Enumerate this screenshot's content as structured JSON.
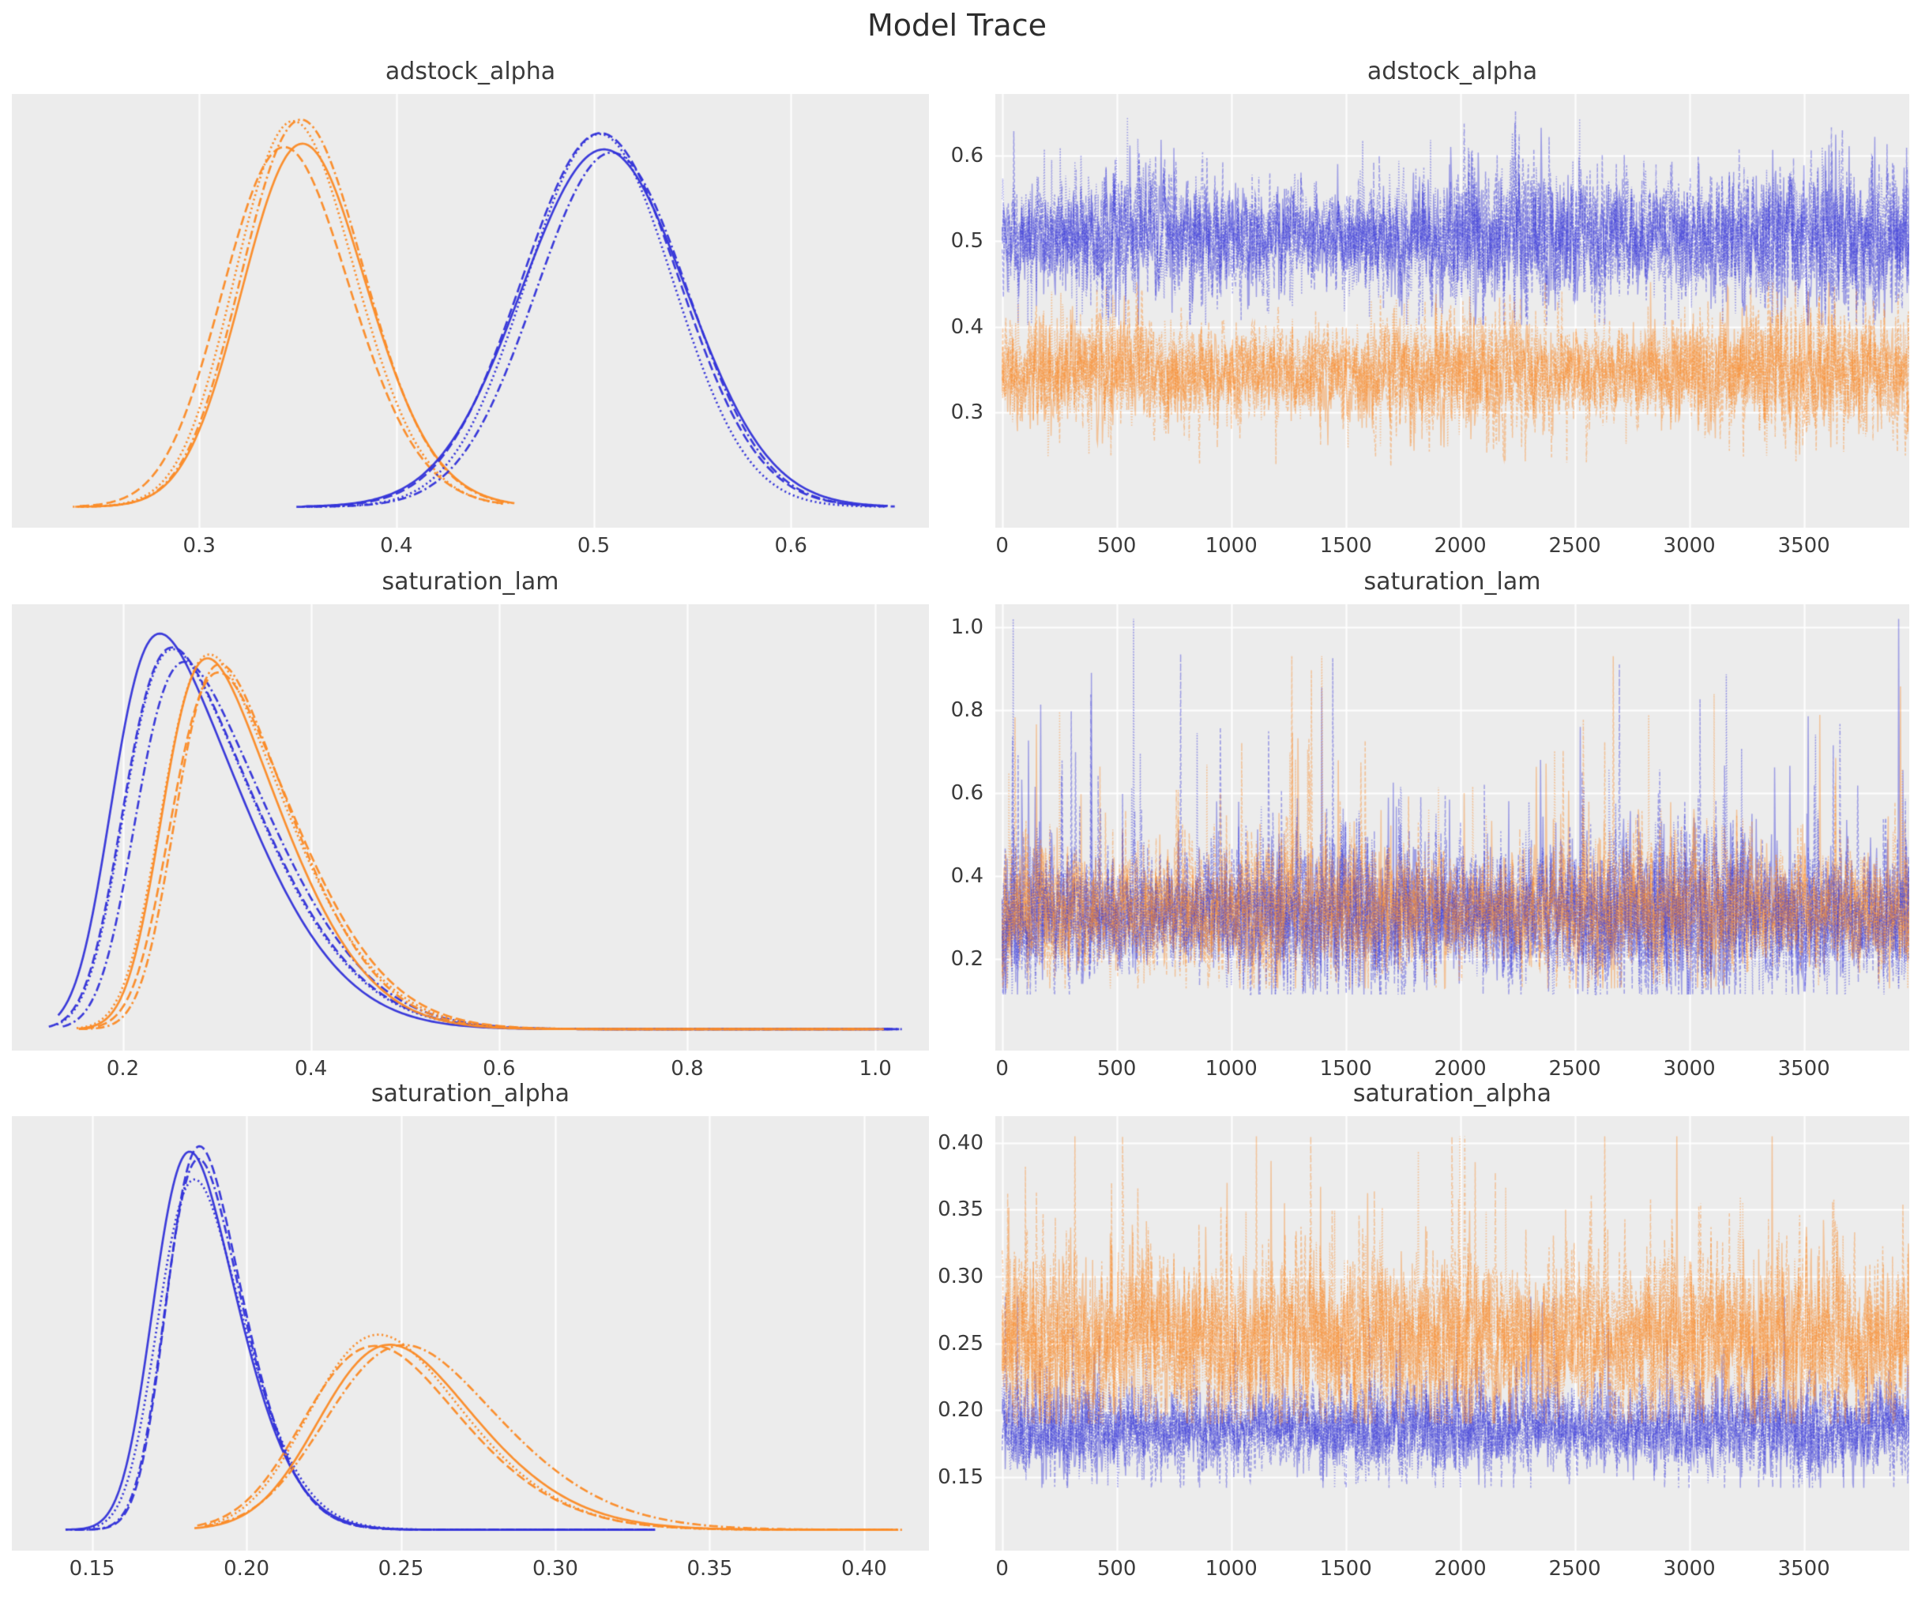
{
  "figure": {
    "title": "Model Trace",
    "colors": {
      "background": "#ffffff",
      "panel_background": "#ececec",
      "gridline": "#ffffff",
      "blue": "#3434d8",
      "orange": "#fb8b28",
      "title_text": "#2d2d2d",
      "tick_text": "#3b3b3b"
    },
    "n_chains_per_group": 4,
    "chain_line_styles": [
      "solid",
      "dashed",
      "dashdot",
      "dotted"
    ],
    "groups": [
      "blue",
      "orange"
    ],
    "legend": false
  },
  "chart_data": [
    {
      "type": "kde",
      "title": "adstock_alpha",
      "row": 0,
      "col": 0,
      "xlabel": "",
      "ylabel": "",
      "xlim": [
        0.205,
        0.67
      ],
      "xticks": [
        0.3,
        0.4,
        0.5,
        0.6
      ],
      "xtick_labels": [
        "0.3",
        "0.4",
        "0.5",
        "0.6"
      ],
      "grid": "vertical",
      "series": [
        {
          "name": "orange-group",
          "color_key": "orange",
          "loc": 0.325,
          "scale": 0.042,
          "skew": 1.2,
          "support": [
            0.238,
            0.458
          ],
          "peak_frac": 0.95
        },
        {
          "name": "blue-group",
          "color_key": "blue",
          "loc": 0.505,
          "scale": 0.0395,
          "skew": 0.0,
          "support": [
            0.352,
            0.648
          ],
          "peak_frac": 0.93
        }
      ]
    },
    {
      "type": "trace",
      "title": "adstock_alpha",
      "row": 0,
      "col": 1,
      "xlabel": "",
      "ylabel": "",
      "n_draws": 4000,
      "xlim": [
        -30,
        3960
      ],
      "xticks": [
        0,
        500,
        1000,
        1500,
        2000,
        2500,
        3000,
        3500
      ],
      "xtick_labels": [
        "0",
        "500",
        "1000",
        "1500",
        "2000",
        "2500",
        "3000",
        "3500"
      ],
      "ylim": [
        0.165,
        0.672
      ],
      "yticks": [
        0.3,
        0.4,
        0.5,
        0.6
      ],
      "ytick_labels": [
        "0.3",
        "0.4",
        "0.5",
        "0.6"
      ],
      "grid": "both",
      "series": [
        {
          "name": "blue-group",
          "color_key": "blue",
          "mean": 0.505,
          "sd": 0.034,
          "min": 0.402,
          "max": 0.652,
          "spike_rate": 0.006,
          "spike_scale": 0.04,
          "spike_sign": "both"
        },
        {
          "name": "orange-group",
          "color_key": "orange",
          "mean": 0.348,
          "sd": 0.03,
          "min": 0.237,
          "max": 0.452,
          "spike_rate": 0.006,
          "spike_scale": 0.035,
          "spike_sign": "both"
        }
      ]
    },
    {
      "type": "kde",
      "title": "saturation_lam",
      "row": 1,
      "col": 0,
      "xlabel": "",
      "ylabel": "",
      "xlim": [
        0.082,
        1.057
      ],
      "xticks": [
        0.2,
        0.4,
        0.6,
        0.8,
        1.0
      ],
      "xtick_labels": [
        "0.2",
        "0.4",
        "0.6",
        "0.8",
        "1.0"
      ],
      "grid": "vertical",
      "series": [
        {
          "name": "blue-group",
          "color_key": "blue",
          "loc": 0.2,
          "scale": 0.115,
          "skew": 3.8,
          "support": [
            0.128,
            1.02
          ],
          "peak_frac": 0.95
        },
        {
          "name": "orange-group",
          "color_key": "orange",
          "loc": 0.245,
          "scale": 0.112,
          "skew": 3.4,
          "support": [
            0.152,
            1.005
          ],
          "peak_frac": 0.87
        }
      ]
    },
    {
      "type": "trace",
      "title": "saturation_lam",
      "row": 1,
      "col": 1,
      "xlabel": "",
      "ylabel": "",
      "n_draws": 4000,
      "xlim": [
        -30,
        3960
      ],
      "xticks": [
        0,
        500,
        1000,
        1500,
        2000,
        2500,
        3000,
        3500
      ],
      "xtick_labels": [
        "0",
        "500",
        "1000",
        "1500",
        "2000",
        "2500",
        "3000",
        "3500"
      ],
      "ylim": [
        -0.02,
        1.055
      ],
      "yticks": [
        0.2,
        0.4,
        0.6,
        0.8,
        1.0
      ],
      "ytick_labels": [
        "0.2",
        "0.4",
        "0.6",
        "0.8",
        "1.0"
      ],
      "grid": "both",
      "interleave_chains": true,
      "series": [
        {
          "name": "blue-group",
          "color_key": "blue",
          "mean": 0.3,
          "sd": 0.075,
          "min": 0.115,
          "max": 1.02,
          "spike_rate": 0.055,
          "spike_scale": 0.16,
          "spike_sign": "up"
        },
        {
          "name": "orange-group",
          "color_key": "orange",
          "mean": 0.315,
          "sd": 0.072,
          "min": 0.13,
          "max": 0.93,
          "spike_rate": 0.05,
          "spike_scale": 0.14,
          "spike_sign": "up"
        }
      ]
    },
    {
      "type": "kde",
      "title": "saturation_alpha",
      "row": 2,
      "col": 0,
      "xlabel": "",
      "ylabel": "",
      "xlim": [
        0.124,
        0.421
      ],
      "xticks": [
        0.15,
        0.2,
        0.25,
        0.3,
        0.35,
        0.4
      ],
      "xtick_labels": [
        "0.15",
        "0.20",
        "0.25",
        "0.30",
        "0.35",
        "0.40"
      ],
      "grid": "vertical",
      "series": [
        {
          "name": "blue-group",
          "color_key": "blue",
          "loc": 0.172,
          "scale": 0.021,
          "skew": 2.4,
          "support": [
            0.143,
            0.332
          ],
          "peak_frac": 0.93
        },
        {
          "name": "orange-group",
          "color_key": "orange",
          "loc": 0.226,
          "scale": 0.04,
          "skew": 2.0,
          "support": [
            0.185,
            0.41
          ],
          "peak_frac": 0.48
        }
      ]
    },
    {
      "type": "trace",
      "title": "saturation_alpha",
      "row": 2,
      "col": 1,
      "xlabel": "",
      "ylabel": "",
      "n_draws": 4000,
      "xlim": [
        -30,
        3960
      ],
      "xticks": [
        0,
        500,
        1000,
        1500,
        2000,
        2500,
        3000,
        3500
      ],
      "xtick_labels": [
        "0",
        "500",
        "1000",
        "1500",
        "2000",
        "2500",
        "3000",
        "3500"
      ],
      "ylim": [
        0.095,
        0.42
      ],
      "yticks": [
        0.15,
        0.2,
        0.25,
        0.3,
        0.35,
        0.4
      ],
      "ytick_labels": [
        "0.15",
        "0.20",
        "0.25",
        "0.30",
        "0.35",
        "0.40"
      ],
      "grid": "both",
      "series": [
        {
          "name": "blue-group",
          "color_key": "blue",
          "mean": 0.186,
          "sd": 0.0155,
          "min": 0.142,
          "max": 0.285,
          "spike_rate": 0.02,
          "spike_scale": 0.03,
          "spike_sign": "up"
        },
        {
          "name": "orange-group",
          "color_key": "orange",
          "mean": 0.252,
          "sd": 0.028,
          "min": 0.19,
          "max": 0.405,
          "spike_rate": 0.03,
          "spike_scale": 0.045,
          "spike_sign": "up"
        }
      ]
    }
  ]
}
